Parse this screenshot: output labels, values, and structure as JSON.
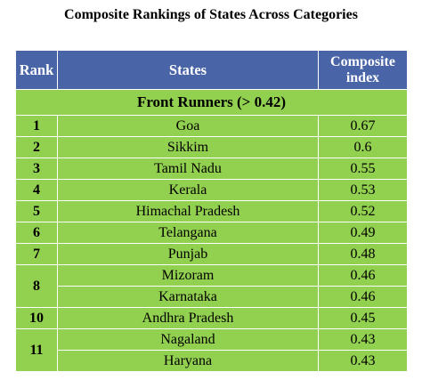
{
  "title": "Composite Rankings of States Across Categories",
  "colors": {
    "header_bg": "#4a64a8",
    "row_bg": "#92d050",
    "header_text": "#ffffff"
  },
  "table": {
    "headers": {
      "rank": "Rank",
      "states": "States",
      "composite_line1": "Composite",
      "composite_line2": "index"
    },
    "group_label": "Front Runners (> 0.42)",
    "rows": [
      {
        "rank": "1",
        "state": "Goa",
        "index": "0.67"
      },
      {
        "rank": "2",
        "state": "Sikkim",
        "index": "0.6"
      },
      {
        "rank": "3",
        "state": "Tamil Nadu",
        "index": "0.55"
      },
      {
        "rank": "4",
        "state": "Kerala",
        "index": "0.53"
      },
      {
        "rank": "5",
        "state": "Himachal Pradesh",
        "index": "0.52"
      },
      {
        "rank": "6",
        "state": "Telangana",
        "index": "0.49"
      },
      {
        "rank": "7",
        "state": "Punjab",
        "index": "0.48"
      },
      {
        "rank": "8",
        "state": "Mizoram",
        "index": "0.46"
      },
      {
        "rank": "",
        "state": "Karnataka",
        "index": "0.46"
      },
      {
        "rank": "10",
        "state": "Andhra Pradesh",
        "index": "0.45"
      },
      {
        "rank": "11",
        "state": "Nagaland",
        "index": "0.43"
      },
      {
        "rank": "",
        "state": "Haryana",
        "index": "0.43"
      }
    ]
  }
}
